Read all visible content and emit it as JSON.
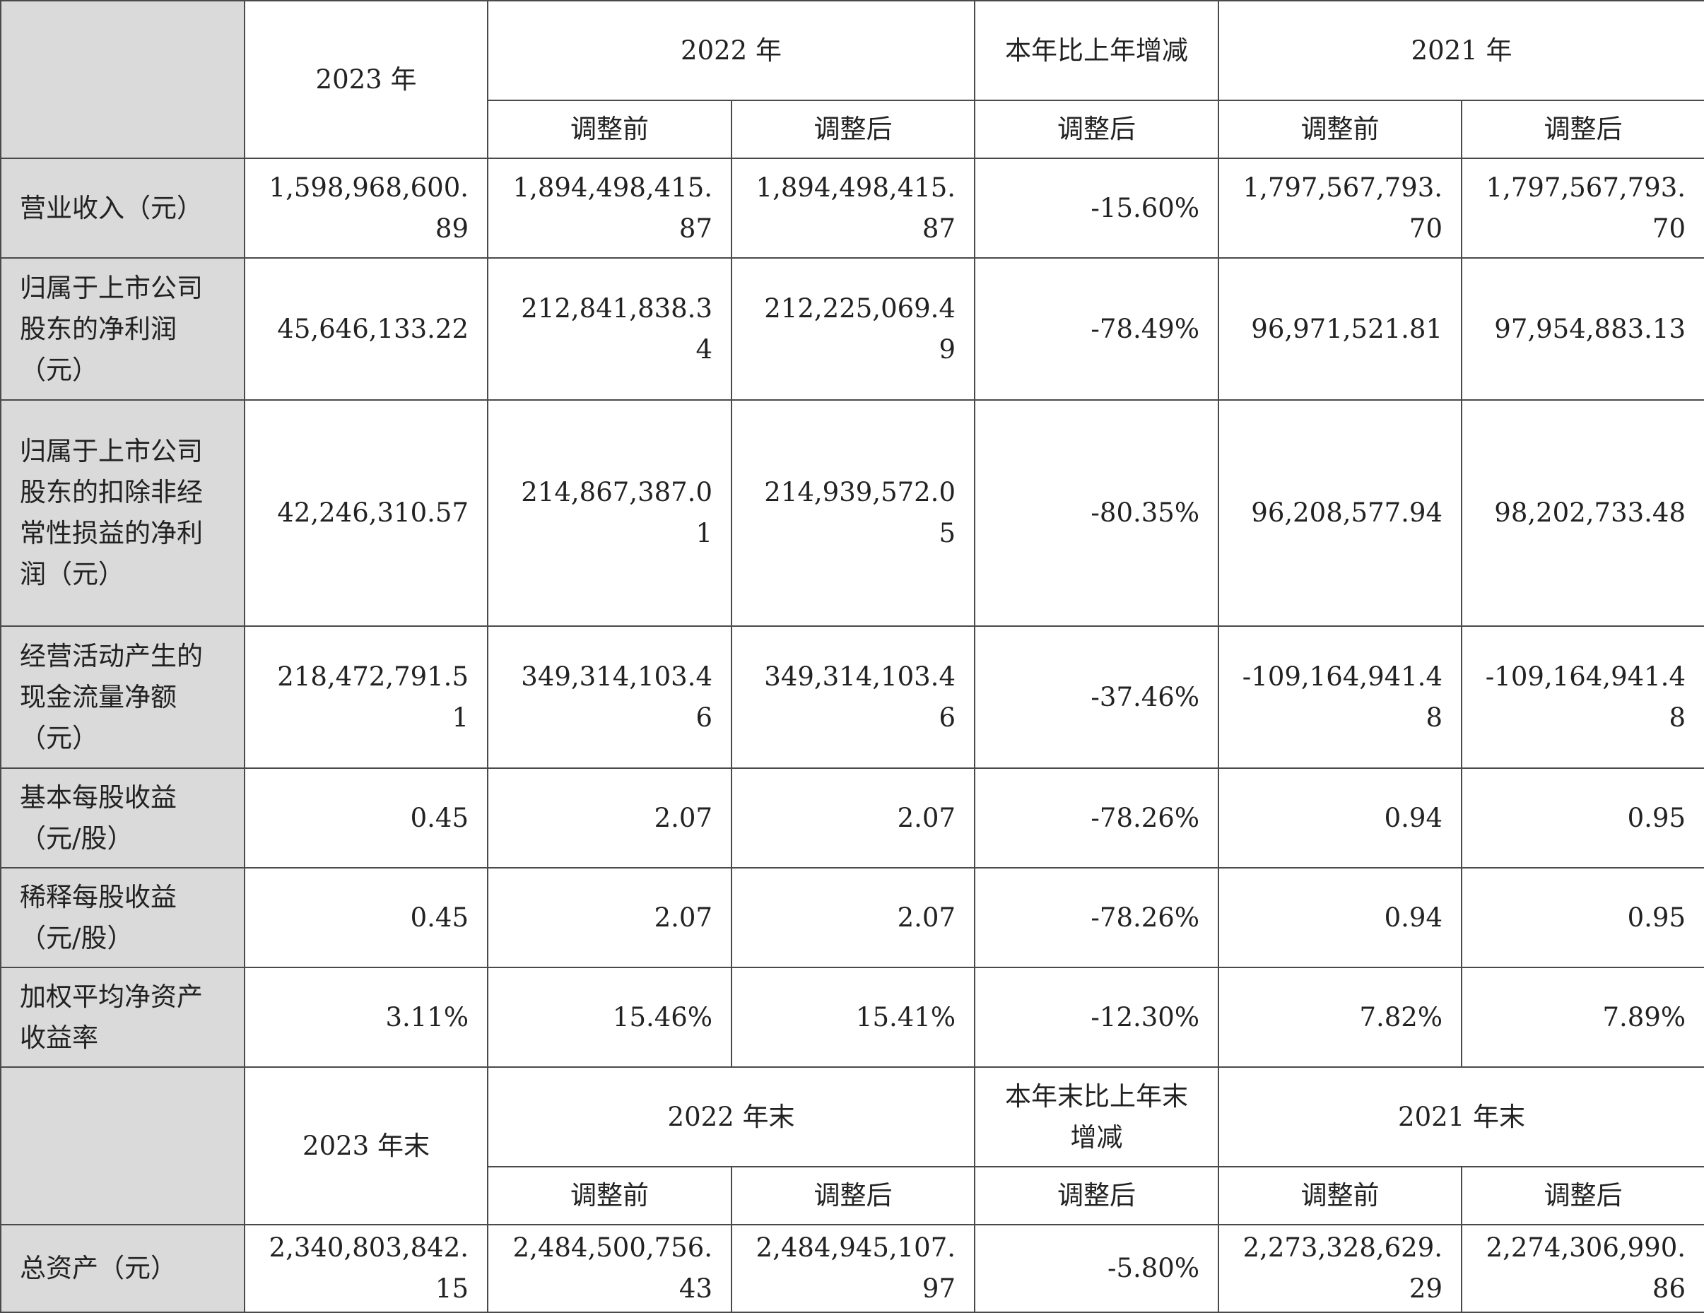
{
  "section1": {
    "year_cols": {
      "y2023": "2023 年",
      "y2022": "2022 年",
      "change": "本年比上年增减",
      "y2021": "2021 年"
    },
    "sub_cols": {
      "y2022_before": "调整前",
      "y2022_after": "调整后",
      "change_after": "调整后",
      "y2021_before": "调整前",
      "y2021_after": "调整后"
    },
    "rows": [
      {
        "label": "营业收入（元）",
        "v2023": "1,598,968,600.89",
        "v2022_before": "1,894,498,415.87",
        "v2022_after": "1,894,498,415.87",
        "change": "-15.60%",
        "v2021_before": "1,797,567,793.70",
        "v2021_after": "1,797,567,793.70"
      },
      {
        "label": "归属于上市公司股东的净利润（元）",
        "v2023": "45,646,133.22",
        "v2022_before": "212,841,838.34",
        "v2022_after": "212,225,069.49",
        "change": "-78.49%",
        "v2021_before": "96,971,521.81",
        "v2021_after": "97,954,883.13"
      },
      {
        "label": "归属于上市公司股东的扣除非经常性损益的净利润（元）",
        "v2023": "42,246,310.57",
        "v2022_before": "214,867,387.01",
        "v2022_after": "214,939,572.05",
        "change": "-80.35%",
        "v2021_before": "96,208,577.94",
        "v2021_after": "98,202,733.48"
      },
      {
        "label": "经营活动产生的现金流量净额（元）",
        "v2023": "218,472,791.51",
        "v2022_before": "349,314,103.46",
        "v2022_after": "349,314,103.46",
        "change": "-37.46%",
        "v2021_before": "-109,164,941.48",
        "v2021_after": "-109,164,941.48"
      },
      {
        "label": "基本每股收益（元/股）",
        "v2023": "0.45",
        "v2022_before": "2.07",
        "v2022_after": "2.07",
        "change": "-78.26%",
        "v2021_before": "0.94",
        "v2021_after": "0.95"
      },
      {
        "label": "稀释每股收益（元/股）",
        "v2023": "0.45",
        "v2022_before": "2.07",
        "v2022_after": "2.07",
        "change": "-78.26%",
        "v2021_before": "0.94",
        "v2021_after": "0.95"
      },
      {
        "label": "加权平均净资产收益率",
        "v2023": "3.11%",
        "v2022_before": "15.46%",
        "v2022_after": "15.41%",
        "change": "-12.30%",
        "v2021_before": "7.82%",
        "v2021_after": "7.89%"
      }
    ]
  },
  "section2": {
    "year_cols": {
      "y2023": "2023 年末",
      "y2022": "2022 年末",
      "change": "本年末比上年末增减",
      "y2021": "2021 年末"
    },
    "sub_cols": {
      "y2022_before": "调整前",
      "y2022_after": "调整后",
      "change_after": "调整后",
      "y2021_before": "调整前",
      "y2021_after": "调整后"
    },
    "rows": [
      {
        "label": "总资产（元）",
        "v2023": "2,340,803,842.15",
        "v2022_before": "2,484,500,756.43",
        "v2022_after": "2,484,945,107.97",
        "change": "-5.80%",
        "v2021_before": "2,273,328,629.29",
        "v2021_after": "2,274,306,990.86"
      }
    ]
  }
}
